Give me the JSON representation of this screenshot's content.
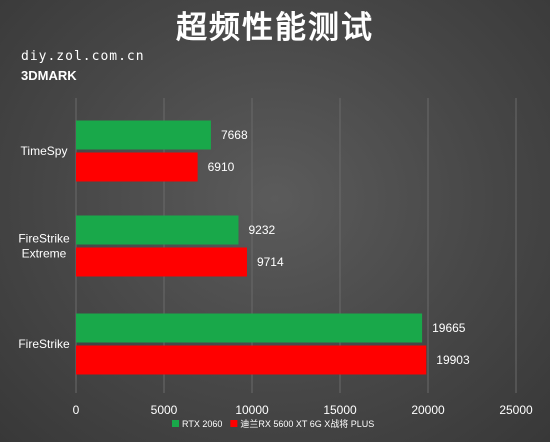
{
  "chart_data": {
    "type": "bar",
    "orientation": "horizontal",
    "title": "超频性能测试",
    "source": "diy.zol.com.cn",
    "subtitle": "3DMARK",
    "categories": [
      "TimeSpy",
      "FireStrike Extreme",
      "FireStrike"
    ],
    "category_lines": [
      [
        "TimeSpy"
      ],
      [
        "FireStrike",
        "Extreme"
      ],
      [
        "FireStrike"
      ]
    ],
    "series": [
      {
        "name": "RTX 2060",
        "color": "#19a84a",
        "values": [
          7668,
          9232,
          19665
        ]
      },
      {
        "name": "迪兰RX 5600 XT 6G X战将 PLUS",
        "color": "#ff0000",
        "values": [
          6910,
          9714,
          19903
        ]
      }
    ],
    "xlim": [
      0,
      25000
    ],
    "xticks": [
      0,
      5000,
      10000,
      15000,
      20000,
      25000
    ],
    "grid": true,
    "legend_position": "bottom"
  }
}
